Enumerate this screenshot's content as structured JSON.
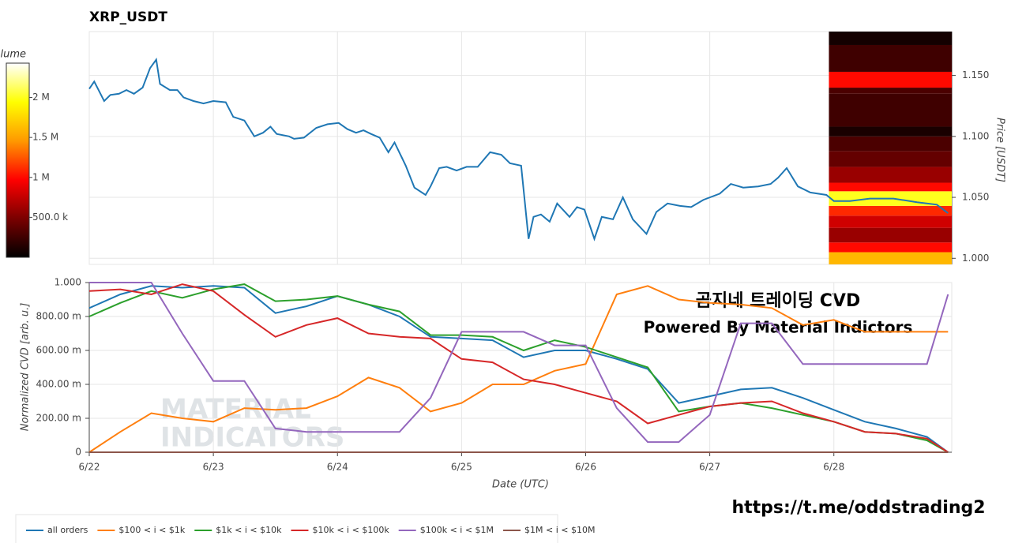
{
  "chart_data": [
    {
      "type": "line",
      "title": "XRP_USDT",
      "y_label": "Price [USDT]",
      "x": [
        0,
        0.04,
        0.12,
        0.17,
        0.24,
        0.3,
        0.36,
        0.43,
        0.49,
        0.54,
        0.57,
        0.65,
        0.71,
        0.76,
        0.84,
        0.92,
        1.0,
        1.1,
        1.16,
        1.25,
        1.33,
        1.4,
        1.46,
        1.51,
        1.61,
        1.65,
        1.73,
        1.83,
        1.92,
        2.01,
        2.08,
        2.15,
        2.21,
        2.27,
        2.34,
        2.41,
        2.46,
        2.55,
        2.62,
        2.71,
        2.75,
        2.82,
        2.88,
        2.96,
        3.04,
        3.13,
        3.23,
        3.32,
        3.39,
        3.48,
        3.54,
        3.58,
        3.64,
        3.71,
        3.77,
        3.87,
        3.93,
        3.99,
        4.07,
        4.13,
        4.22,
        4.3,
        4.38,
        4.49,
        4.57,
        4.66,
        4.76,
        4.85,
        4.95,
        5.08,
        5.17,
        5.27,
        5.39,
        5.49,
        5.55,
        5.62,
        5.71,
        5.81,
        5.94,
        6.0,
        6.13,
        6.29,
        6.48,
        6.67,
        6.83,
        6.92
      ],
      "series": [
        {
          "color": "#1f77b4",
          "values": [
            1.139,
            1.145,
            1.129,
            1.134,
            1.135,
            1.138,
            1.135,
            1.14,
            1.156,
            1.163,
            1.143,
            1.138,
            1.138,
            1.132,
            1.129,
            1.127,
            1.129,
            1.128,
            1.116,
            1.113,
            1.1,
            1.103,
            1.108,
            1.102,
            1.1,
            1.098,
            1.099,
            1.107,
            1.11,
            1.111,
            1.106,
            1.103,
            1.105,
            1.102,
            1.099,
            1.087,
            1.095,
            1.076,
            1.058,
            1.052,
            1.059,
            1.074,
            1.075,
            1.072,
            1.075,
            1.075,
            1.087,
            1.085,
            1.078,
            1.076,
            1.016,
            1.034,
            1.036,
            1.03,
            1.045,
            1.034,
            1.042,
            1.04,
            1.016,
            1.034,
            1.032,
            1.05,
            1.032,
            1.02,
            1.038,
            1.045,
            1.043,
            1.042,
            1.048,
            1.053,
            1.061,
            1.058,
            1.059,
            1.061,
            1.066,
            1.074,
            1.059,
            1.054,
            1.052,
            1.047,
            1.047,
            1.049,
            1.049,
            1.046,
            1.044,
            1.037
          ]
        }
      ],
      "xlim": [
        0,
        6.95
      ],
      "ylim": [
        0.995,
        1.186
      ],
      "yticks": [
        {
          "value": 1.0,
          "label": "1.000"
        },
        {
          "value": 1.05,
          "label": "1.050"
        },
        {
          "value": 1.1,
          "label": "1.100"
        },
        {
          "value": 1.15,
          "label": "1.150"
        }
      ],
      "grid": true,
      "heatmap": {
        "x_range": [
          5.96,
          6.95
        ],
        "price_bins": [
          0.995,
          1.005,
          1.013,
          1.025,
          1.035,
          1.043,
          1.055,
          1.062,
          1.075,
          1.088,
          1.1,
          1.108,
          1.135,
          1.14,
          1.153,
          1.175,
          1.186
        ],
        "volumes": [
          1600000,
          1000000,
          600000,
          800000,
          1100000,
          2000000,
          1000000,
          600000,
          400000,
          300000,
          100000,
          250000,
          300000,
          1000000,
          250000,
          80000
        ],
        "colorbar_label": "Volume",
        "clim": [
          0,
          2430000
        ],
        "colormap": [
          "#000000",
          "#7a0000",
          "#ff0000",
          "#ff9900",
          "#ffff00",
          "#ffffff"
        ],
        "cticks": [
          {
            "value": 500000,
            "label": "500.0 k"
          },
          {
            "value": 1000000,
            "label": "1 M"
          },
          {
            "value": 1500000,
            "label": "1.5 M"
          },
          {
            "value": 2000000,
            "label": "2 M"
          }
        ]
      }
    },
    {
      "type": "line",
      "x_label": "Date (UTC)",
      "y_label": "Normalized CVD [arb. u.]",
      "x": [
        0,
        0.25,
        0.5,
        0.75,
        1,
        1.25,
        1.5,
        1.75,
        2,
        2.25,
        2.5,
        2.75,
        3,
        3.25,
        3.5,
        3.75,
        4,
        4.25,
        4.5,
        4.75,
        5,
        5.25,
        5.5,
        5.75,
        6,
        6.25,
        6.5,
        6.75,
        6.92
      ],
      "series": [
        {
          "name": "all orders",
          "color": "#1f77b4",
          "values": [
            0.85,
            0.93,
            0.98,
            0.97,
            0.98,
            0.97,
            0.82,
            0.86,
            0.92,
            0.87,
            0.8,
            0.68,
            0.67,
            0.66,
            0.56,
            0.6,
            0.6,
            0.55,
            0.49,
            0.29,
            0.33,
            0.37,
            0.38,
            0.32,
            0.25,
            0.18,
            0.14,
            0.09,
            0.0
          ]
        },
        {
          "name": "$100 < i < $1k",
          "color": "#ff7f0e",
          "values": [
            0.0,
            0.12,
            0.23,
            0.2,
            0.18,
            0.26,
            0.25,
            0.26,
            0.33,
            0.44,
            0.38,
            0.24,
            0.29,
            0.4,
            0.4,
            0.48,
            0.52,
            0.93,
            0.98,
            0.9,
            0.88,
            0.87,
            0.85,
            0.75,
            0.78,
            0.71,
            0.71,
            0.71,
            0.71
          ]
        },
        {
          "name": "$1k < i < $10k",
          "color": "#2ca02c",
          "values": [
            0.8,
            0.88,
            0.95,
            0.91,
            0.96,
            0.99,
            0.89,
            0.9,
            0.92,
            0.87,
            0.83,
            0.69,
            0.69,
            0.68,
            0.6,
            0.66,
            0.62,
            0.56,
            0.5,
            0.24,
            0.27,
            0.29,
            0.26,
            0.22,
            0.18,
            0.12,
            0.11,
            0.07,
            0.0
          ]
        },
        {
          "name": "$10k < i < $100k",
          "color": "#d62728",
          "values": [
            0.95,
            0.96,
            0.93,
            0.99,
            0.95,
            0.81,
            0.68,
            0.75,
            0.79,
            0.7,
            0.68,
            0.67,
            0.55,
            0.53,
            0.43,
            0.4,
            0.35,
            0.3,
            0.17,
            0.22,
            0.27,
            0.29,
            0.3,
            0.23,
            0.18,
            0.12,
            0.11,
            0.08,
            0.0
          ]
        },
        {
          "name": "$100k < i < $1M",
          "color": "#9467bd",
          "values": [
            1.0,
            1.0,
            1.0,
            0.7,
            0.42,
            0.42,
            0.14,
            0.12,
            0.12,
            0.12,
            0.12,
            0.32,
            0.71,
            0.71,
            0.71,
            0.63,
            0.63,
            0.26,
            0.06,
            0.06,
            0.22,
            0.76,
            0.76,
            0.52,
            0.52,
            0.52,
            0.52,
            0.52,
            0.93
          ]
        },
        {
          "name": "$1M < i < $10M",
          "color": "#8c564b",
          "values": [
            0,
            0,
            0,
            0,
            0,
            0,
            0,
            0,
            0,
            0,
            0,
            0,
            0,
            0,
            0,
            0,
            0,
            0,
            0,
            0,
            0,
            0,
            0,
            0,
            0,
            0,
            0,
            0,
            0
          ]
        }
      ],
      "xlim": [
        0,
        6.95
      ],
      "ylim": [
        0,
        1.0
      ],
      "xticks": [
        {
          "value": 0,
          "label": "6/22"
        },
        {
          "value": 1,
          "label": "6/23"
        },
        {
          "value": 2,
          "label": "6/24"
        },
        {
          "value": 3,
          "label": "6/25"
        },
        {
          "value": 4,
          "label": "6/26"
        },
        {
          "value": 5,
          "label": "6/27"
        },
        {
          "value": 6,
          "label": "6/28"
        }
      ],
      "yticks": [
        0,
        {
          "value": 0.2,
          "label": "200.00 m"
        },
        {
          "value": 0.4,
          "label": "400.00 m"
        },
        {
          "value": 0.6,
          "label": "600.00 m"
        },
        {
          "value": 0.8,
          "label": "800.00 m"
        },
        {
          "value": 1.0,
          "label": "1.000"
        }
      ],
      "grid": true,
      "legend": "bottom"
    }
  ],
  "annotations": [
    "곰지네 트레이딩 CVD",
    "Powered By Material Indictors",
    "https://t.me/oddstrading2"
  ],
  "watermark": [
    "MATERIAL",
    "INDICATORS"
  ]
}
